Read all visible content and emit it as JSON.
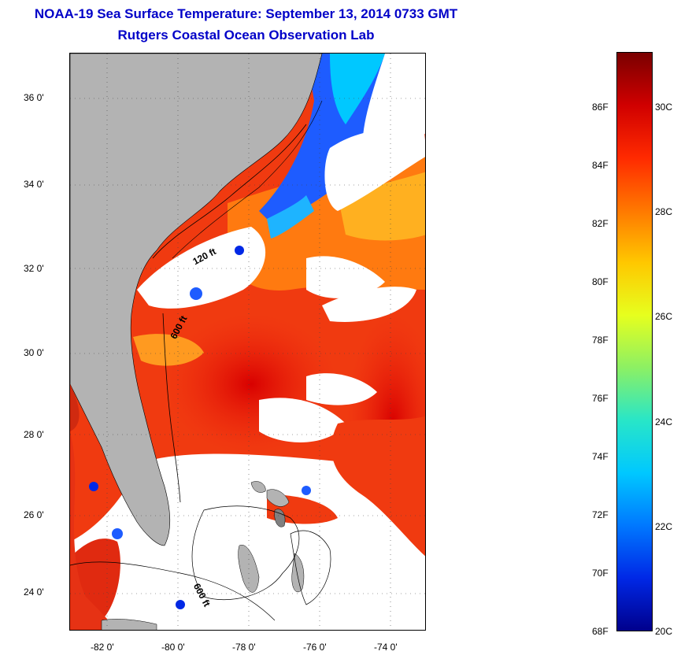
{
  "title_line1": "NOAA-19 Sea Surface Temperature:  September 13, 2014 0733 GMT",
  "title_line2": "Rutgers Coastal Ocean Observation Lab",
  "map": {
    "lat_ticks": [
      "36 0'",
      "34 0'",
      "32 0'",
      "30 0'",
      "28 0'",
      "26 0'",
      "24 0'"
    ],
    "lon_ticks": [
      "-82 0'",
      "-80 0'",
      "-78 0'",
      "-76 0'",
      "-74 0'"
    ],
    "contour_labels": [
      "120 ft",
      "600 ft",
      "600 ft"
    ],
    "colors": {
      "land": "#b3b3b3",
      "cloud": "#ffffff",
      "warm": "#f03010",
      "hot": "#d80000",
      "mid": "#ff8c00",
      "cool": "#1e5cff",
      "cold": "#0000a0"
    }
  },
  "colorbar": {
    "fahrenheit_labels": [
      "86F",
      "84F",
      "82F",
      "80F",
      "78F",
      "76F",
      "74F",
      "72F",
      "70F",
      "68F"
    ],
    "celsius_labels": [
      "30C",
      "28C",
      "26C",
      "24C",
      "22C",
      "20C"
    ],
    "gradient": [
      "#7a0000",
      "#d00000",
      "#ff2a00",
      "#ff7800",
      "#ffc800",
      "#e6ff1e",
      "#8cf064",
      "#28e6c8",
      "#00c8ff",
      "#0078ff",
      "#0028e6",
      "#00008c"
    ]
  }
}
